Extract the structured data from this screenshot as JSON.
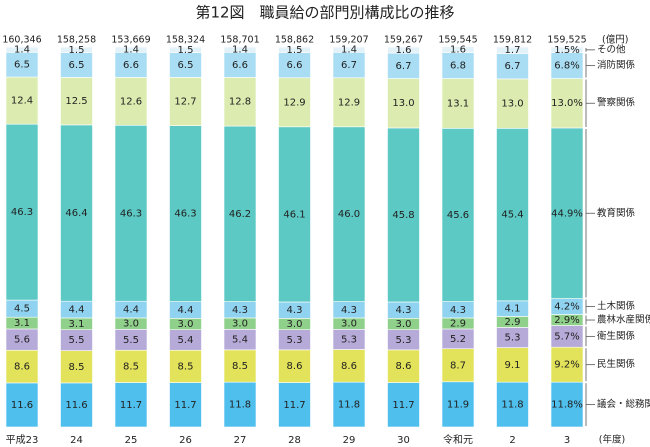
{
  "chart_data": {
    "type": "stacked_bar",
    "title": "第12図　職員給の部門別構成比の推移",
    "unit_label": "(億円)",
    "x_unit_label": "(年度)",
    "categories": [
      "平成23",
      "24",
      "25",
      "26",
      "27",
      "28",
      "29",
      "30",
      "令和元",
      "2",
      "3"
    ],
    "ylim": [
      0,
      100
    ],
    "totals": {
      "values": [
        160346,
        158258,
        153669,
        158324,
        158701,
        158862,
        159207,
        159267,
        159545,
        159812,
        159525
      ],
      "value_labels": [
        "160,346",
        "158,258",
        "153,669",
        "158,324",
        "158,701",
        "158,862",
        "159,207",
        "159,267",
        "159,545",
        "159,812",
        "159,525"
      ]
    },
    "series": [
      {
        "name": "議会・総務関係",
        "color": "#4fbfee",
        "values": [
          11.6,
          11.6,
          11.7,
          11.7,
          11.8,
          11.7,
          11.8,
          11.7,
          11.9,
          11.8,
          11.8
        ],
        "value_labels": [
          "11.6",
          "11.6",
          "11.7",
          "11.7",
          "11.8",
          "11.7",
          "11.8",
          "11.7",
          "11.9",
          "11.8",
          "11.8%"
        ]
      },
      {
        "name": "民生関係",
        "color": "#e2e35a",
        "values": [
          8.6,
          8.5,
          8.5,
          8.5,
          8.5,
          8.6,
          8.6,
          8.6,
          8.7,
          9.1,
          9.2
        ],
        "value_labels": [
          "8.6",
          "8.5",
          "8.5",
          "8.5",
          "8.5",
          "8.6",
          "8.6",
          "8.6",
          "8.7",
          "9.1",
          "9.2%"
        ]
      },
      {
        "name": "衛生関係",
        "color": "#b6aad8",
        "values": [
          5.6,
          5.5,
          5.5,
          5.4,
          5.4,
          5.3,
          5.3,
          5.3,
          5.2,
          5.3,
          5.7
        ],
        "value_labels": [
          "5.6",
          "5.5",
          "5.5",
          "5.4",
          "5.4",
          "5.3",
          "5.3",
          "5.3",
          "5.2",
          "5.3",
          "5.7%"
        ]
      },
      {
        "name": "農林水産関係",
        "color": "#8fd08a",
        "values": [
          3.1,
          3.1,
          3.0,
          3.0,
          3.0,
          3.0,
          3.0,
          3.0,
          2.9,
          2.9,
          2.9
        ],
        "value_labels": [
          "3.1",
          "3.1",
          "3.0",
          "3.0",
          "3.0",
          "3.0",
          "3.0",
          "3.0",
          "2.9",
          "2.9",
          "2.9%"
        ]
      },
      {
        "name": "土木関係",
        "color": "#8fd3f0",
        "values": [
          4.5,
          4.4,
          4.4,
          4.4,
          4.3,
          4.3,
          4.3,
          4.3,
          4.3,
          4.1,
          4.2
        ],
        "value_labels": [
          "4.5",
          "4.4",
          "4.4",
          "4.4",
          "4.3",
          "4.3",
          "4.3",
          "4.3",
          "4.3",
          "4.1",
          "4.2%"
        ]
      },
      {
        "name": "教育関係",
        "color": "#5cc9c4",
        "values": [
          46.3,
          46.4,
          46.3,
          46.3,
          46.2,
          46.1,
          46.0,
          45.8,
          45.6,
          45.4,
          44.9
        ],
        "value_labels": [
          "46.3",
          "46.4",
          "46.3",
          "46.3",
          "46.2",
          "46.1",
          "46.0",
          "45.8",
          "45.6",
          "45.4",
          "44.9%"
        ]
      },
      {
        "name": "警察関係",
        "color": "#dcecb0",
        "values": [
          12.4,
          12.5,
          12.6,
          12.7,
          12.8,
          12.9,
          12.9,
          13.0,
          13.1,
          13.0,
          13.0
        ],
        "value_labels": [
          "12.4",
          "12.5",
          "12.6",
          "12.7",
          "12.8",
          "12.9",
          "12.9",
          "13.0",
          "13.1",
          "13.0",
          "13.0%"
        ]
      },
      {
        "name": "消防関係",
        "color": "#a9ddf3",
        "values": [
          6.5,
          6.5,
          6.6,
          6.5,
          6.6,
          6.6,
          6.7,
          6.7,
          6.8,
          6.7,
          6.8
        ],
        "value_labels": [
          "6.5",
          "6.5",
          "6.6",
          "6.5",
          "6.6",
          "6.6",
          "6.7",
          "6.7",
          "6.8",
          "6.7",
          "6.8%"
        ]
      },
      {
        "name": "その他",
        "color": "#e3f2f9",
        "values": [
          1.4,
          1.5,
          1.4,
          1.5,
          1.4,
          1.5,
          1.4,
          1.6,
          1.6,
          1.7,
          1.5
        ],
        "value_labels": [
          "1.4",
          "1.5",
          "1.4",
          "1.5",
          "1.4",
          "1.5",
          "1.4",
          "1.6",
          "1.6",
          "1.7",
          "1.5%"
        ]
      }
    ]
  }
}
